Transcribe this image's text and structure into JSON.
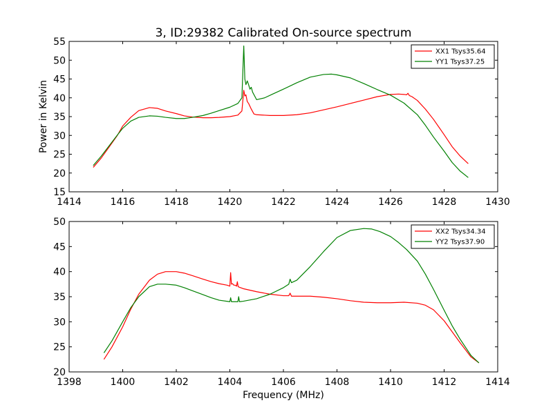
{
  "figure": {
    "title": "3, ID:29382 Calibrated On-source spectrum",
    "ylabel": "Power in Kelvin",
    "xlabel": "Frequency (MHz)"
  },
  "chart_data": [
    {
      "type": "line",
      "xlim": [
        1414,
        1430
      ],
      "ylim": [
        15,
        55
      ],
      "xticks": [
        1414,
        1416,
        1418,
        1420,
        1422,
        1424,
        1426,
        1428,
        1430
      ],
      "yticks": [
        15,
        20,
        25,
        30,
        35,
        40,
        45,
        50,
        55
      ],
      "grid": false,
      "legend": "top-right",
      "series": [
        {
          "name": "XX1 Tsys35.64",
          "color": "#ff0000",
          "x": [
            1414.9,
            1415.2,
            1415.5,
            1415.8,
            1416.0,
            1416.3,
            1416.6,
            1417.0,
            1417.3,
            1417.6,
            1418.0,
            1418.3,
            1418.6,
            1419.0,
            1419.3,
            1419.6,
            1420.0,
            1420.3,
            1420.45,
            1420.52,
            1420.56,
            1420.6,
            1420.65,
            1420.7,
            1420.8,
            1420.9,
            1421.0,
            1421.5,
            1422.0,
            1422.5,
            1423.0,
            1423.5,
            1424.0,
            1424.5,
            1425.0,
            1425.5,
            1426.0,
            1426.3,
            1426.5,
            1426.6,
            1426.65,
            1426.7,
            1426.8,
            1427.0,
            1427.3,
            1427.6,
            1428.0,
            1428.3,
            1428.6,
            1428.9
          ],
          "y": [
            21.5,
            24.0,
            27.0,
            30.0,
            32.5,
            34.8,
            36.6,
            37.4,
            37.2,
            36.5,
            35.8,
            35.2,
            34.9,
            34.7,
            34.7,
            34.8,
            35.0,
            35.4,
            36.5,
            42.0,
            40.5,
            40.8,
            39.0,
            38.5,
            37.0,
            35.7,
            35.5,
            35.3,
            35.3,
            35.5,
            36.0,
            36.8,
            37.6,
            38.5,
            39.4,
            40.3,
            40.9,
            41.0,
            40.9,
            40.8,
            41.2,
            40.6,
            40.3,
            39.3,
            37.0,
            34.3,
            30.2,
            27.0,
            24.5,
            22.5
          ]
        },
        {
          "name": "YY1 Tsys37.25",
          "color": "#008000",
          "x": [
            1414.9,
            1415.2,
            1415.5,
            1415.8,
            1416.0,
            1416.3,
            1416.6,
            1417.0,
            1417.3,
            1417.6,
            1418.0,
            1418.3,
            1418.6,
            1419.0,
            1419.3,
            1419.6,
            1420.0,
            1420.3,
            1420.45,
            1420.52,
            1420.56,
            1420.6,
            1420.65,
            1420.7,
            1420.75,
            1420.8,
            1420.85,
            1421.0,
            1421.3,
            1421.6,
            1422.0,
            1422.5,
            1423.0,
            1423.5,
            1423.8,
            1424.0,
            1424.5,
            1425.0,
            1425.5,
            1426.0,
            1426.5,
            1427.0,
            1427.3,
            1427.6,
            1428.0,
            1428.3,
            1428.6,
            1428.9
          ],
          "y": [
            22.0,
            24.5,
            27.3,
            30.1,
            31.9,
            33.8,
            34.8,
            35.2,
            35.1,
            34.8,
            34.5,
            34.5,
            34.8,
            35.3,
            35.9,
            36.6,
            37.5,
            38.5,
            40.0,
            53.8,
            45.0,
            43.5,
            44.5,
            43.5,
            42.3,
            42.8,
            41.5,
            39.5,
            40.0,
            41.0,
            42.3,
            44.0,
            45.5,
            46.2,
            46.3,
            46.1,
            45.3,
            43.8,
            42.2,
            40.7,
            38.6,
            35.5,
            32.7,
            29.6,
            25.8,
            22.8,
            20.5,
            18.8
          ]
        }
      ]
    },
    {
      "type": "line",
      "xlim": [
        1398,
        1414
      ],
      "ylim": [
        20,
        50
      ],
      "xticks": [
        1398,
        1400,
        1402,
        1404,
        1406,
        1408,
        1410,
        1412,
        1414
      ],
      "yticks": [
        20,
        25,
        30,
        35,
        40,
        45,
        50
      ],
      "grid": false,
      "legend": "top-right",
      "series": [
        {
          "name": "XX2 Tsys34.34",
          "color": "#ff0000",
          "x": [
            1399.3,
            1399.6,
            1400.0,
            1400.3,
            1400.6,
            1401.0,
            1401.3,
            1401.6,
            1402.0,
            1402.3,
            1402.6,
            1403.0,
            1403.3,
            1403.6,
            1403.9,
            1404.0,
            1404.03,
            1404.06,
            1404.1,
            1404.15,
            1404.2,
            1404.25,
            1404.28,
            1404.31,
            1404.35,
            1404.5,
            1405.0,
            1405.5,
            1406.0,
            1406.2,
            1406.25,
            1406.3,
            1406.4,
            1406.5,
            1407.0,
            1407.5,
            1408.0,
            1408.5,
            1409.0,
            1409.5,
            1410.0,
            1410.5,
            1411.0,
            1411.3,
            1411.6,
            1412.0,
            1412.3,
            1412.6,
            1413.0,
            1413.3
          ],
          "y": [
            22.5,
            25.0,
            29.0,
            32.5,
            35.5,
            38.3,
            39.5,
            40.0,
            40.0,
            39.7,
            39.2,
            38.5,
            38.0,
            37.6,
            37.3,
            37.1,
            39.8,
            37.5,
            37.6,
            37.3,
            37.3,
            37.1,
            38.0,
            37.0,
            36.9,
            36.6,
            36.0,
            35.5,
            35.2,
            35.2,
            35.7,
            35.1,
            35.1,
            35.1,
            35.1,
            34.9,
            34.6,
            34.2,
            33.9,
            33.8,
            33.8,
            33.9,
            33.7,
            33.3,
            32.4,
            30.2,
            28.0,
            25.8,
            23.0,
            21.8
          ]
        },
        {
          "name": "YY2 Tsys37.90",
          "color": "#008000",
          "x": [
            1399.3,
            1399.6,
            1400.0,
            1400.3,
            1400.6,
            1401.0,
            1401.3,
            1401.6,
            1402.0,
            1402.3,
            1402.6,
            1403.0,
            1403.3,
            1403.6,
            1404.0,
            1404.03,
            1404.06,
            1404.2,
            1404.3,
            1404.33,
            1404.36,
            1404.5,
            1405.0,
            1405.5,
            1406.0,
            1406.2,
            1406.25,
            1406.3,
            1406.5,
            1407.0,
            1407.5,
            1408.0,
            1408.5,
            1409.0,
            1409.3,
            1409.6,
            1410.0,
            1410.3,
            1410.6,
            1411.0,
            1411.3,
            1411.6,
            1412.0,
            1412.3,
            1412.6,
            1413.0,
            1413.3
          ],
          "y": [
            23.8,
            26.2,
            30.0,
            32.8,
            35.0,
            37.0,
            37.5,
            37.5,
            37.3,
            36.8,
            36.2,
            35.4,
            34.8,
            34.3,
            34.0,
            34.8,
            34.0,
            34.0,
            34.0,
            35.0,
            34.0,
            34.1,
            34.6,
            35.5,
            36.8,
            37.5,
            38.5,
            37.8,
            38.3,
            41.0,
            44.0,
            46.8,
            48.2,
            48.6,
            48.5,
            48.0,
            47.0,
            45.8,
            44.4,
            42.1,
            39.5,
            36.5,
            32.3,
            29.2,
            26.5,
            23.3,
            21.8
          ]
        }
      ]
    }
  ]
}
